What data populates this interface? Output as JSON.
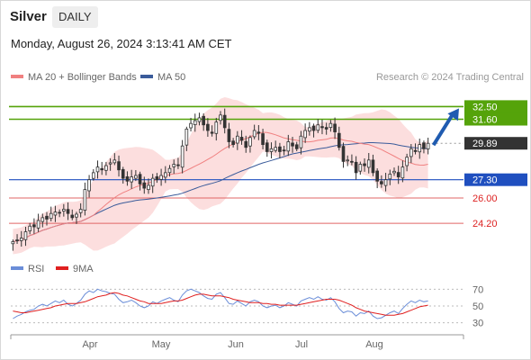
{
  "header": {
    "instrument": "Silver",
    "timeframe": "DAILY",
    "datetime": "Monday, August 26, 2024 3:13:41 AM CET"
  },
  "legend": {
    "ma20_bb": "MA 20 + Bollinger Bands",
    "ma50": "MA 50",
    "source": "Research © 2024 Trading Central"
  },
  "rsi_legend": {
    "rsi": "RSI",
    "ma9": "9MA"
  },
  "colors": {
    "up": "#ffffff",
    "down": "#333333",
    "ma20": "#f08080",
    "ma50": "#3a5b9a",
    "bb_fill": "#fbd3d3",
    "green": "#55a30a",
    "blue": "#1f4fbf",
    "red": "#e06666",
    "last": "#333333",
    "arrow": "#1f5bb0"
  },
  "chart_data": [
    {
      "type": "candlestick",
      "title": "Silver",
      "x_ticks": [
        "Apr",
        "May",
        "Jun",
        "Jul",
        "Aug"
      ],
      "ylim": [
        22.8,
        34.0
      ],
      "last_price": 29.89,
      "levels": [
        {
          "value": 32.5,
          "label": "32.50",
          "kind": "resistance"
        },
        {
          "value": 31.6,
          "label": "31.60",
          "kind": "resistance"
        },
        {
          "value": 29.89,
          "label": "29.89",
          "kind": "last"
        },
        {
          "value": 27.3,
          "label": "27.30",
          "kind": "pivot"
        },
        {
          "value": 26.0,
          "label": "26.00",
          "kind": "support"
        },
        {
          "value": 24.2,
          "label": "24.20",
          "kind": "support"
        }
      ],
      "closes": [
        22.9,
        23.0,
        23.15,
        23.6,
        24.0,
        23.95,
        24.4,
        24.6,
        24.5,
        24.9,
        25.0,
        24.95,
        25.2,
        24.9,
        24.6,
        24.85,
        25.2,
        26.6,
        27.3,
        27.8,
        28.2,
        28.0,
        28.3,
        28.5,
        28.7,
        28.0,
        27.4,
        27.2,
        27.5,
        27.6,
        27.0,
        26.7,
        26.9,
        27.4,
        27.3,
        27.6,
        27.8,
        28.1,
        28.4,
        28.3,
        29.7,
        30.9,
        31.3,
        31.5,
        31.7,
        31.2,
        30.8,
        30.6,
        31.4,
        31.9,
        31.0,
        30.0,
        29.8,
        30.4,
        30.1,
        29.6,
        30.3,
        30.8,
        30.6,
        29.8,
        29.3,
        29.5,
        29.6,
        29.3,
        29.4,
        30.0,
        29.7,
        29.5,
        30.4,
        30.8,
        31.0,
        30.8,
        31.2,
        31.0,
        30.9,
        31.3,
        30.7,
        29.6,
        28.6,
        28.7,
        28.6,
        27.8,
        28.4,
        28.3,
        28.7,
        27.8,
        27.2,
        27.0,
        27.3,
        27.7,
        27.9,
        27.5,
        28.2,
        28.9,
        29.5,
        29.3,
        29.8,
        29.5,
        29.89
      ]
    },
    {
      "type": "line",
      "title": "RSI",
      "ylim": [
        20,
        80
      ],
      "y_ticks": [
        70,
        50,
        30
      ],
      "series": [
        {
          "name": "RSI",
          "color": "#6a8dd8",
          "values": [
            35,
            38,
            40,
            43,
            45,
            46,
            50,
            52,
            50,
            53,
            56,
            54,
            57,
            52,
            50,
            53,
            57,
            64,
            68,
            66,
            70,
            68,
            67,
            65,
            64,
            58,
            54,
            55,
            57,
            54,
            50,
            48,
            50,
            55,
            53,
            56,
            58,
            60,
            57,
            55,
            63,
            68,
            70,
            68,
            66,
            62,
            59,
            58,
            64,
            66,
            60,
            53,
            52,
            56,
            53,
            50,
            55,
            57,
            55,
            50,
            48,
            50,
            51,
            48,
            50,
            54,
            52,
            50,
            56,
            58,
            60,
            58,
            61,
            58,
            57,
            60,
            55,
            47,
            42,
            44,
            43,
            38,
            42,
            41,
            44,
            38,
            35,
            36,
            39,
            42,
            44,
            41,
            47,
            52,
            56,
            54,
            57,
            55,
            56
          ]
        },
        {
          "name": "9MA",
          "color": "#e02020",
          "values": [
            44,
            43,
            42,
            42,
            43,
            44,
            45,
            46,
            47,
            48,
            50,
            51,
            52,
            53,
            53,
            53,
            54,
            55,
            57,
            59,
            61,
            62,
            63,
            65,
            66,
            65,
            63,
            62,
            60,
            58,
            56,
            55,
            53,
            53,
            53,
            53,
            54,
            55,
            56,
            56,
            57,
            59,
            61,
            63,
            64,
            64,
            63,
            62,
            62,
            62,
            61,
            60,
            58,
            57,
            56,
            55,
            54,
            54,
            54,
            53,
            53,
            52,
            52,
            51,
            51,
            51,
            51,
            51,
            52,
            53,
            54,
            55,
            56,
            57,
            58,
            58,
            58,
            57,
            55,
            53,
            51,
            48,
            46,
            44,
            43,
            42,
            41,
            40,
            39,
            39,
            39,
            40,
            41,
            43,
            45,
            47,
            49,
            50,
            51
          ]
        }
      ],
      "x_ticks": [
        "Apr",
        "May",
        "Jun",
        "Jul",
        "Aug"
      ]
    }
  ]
}
